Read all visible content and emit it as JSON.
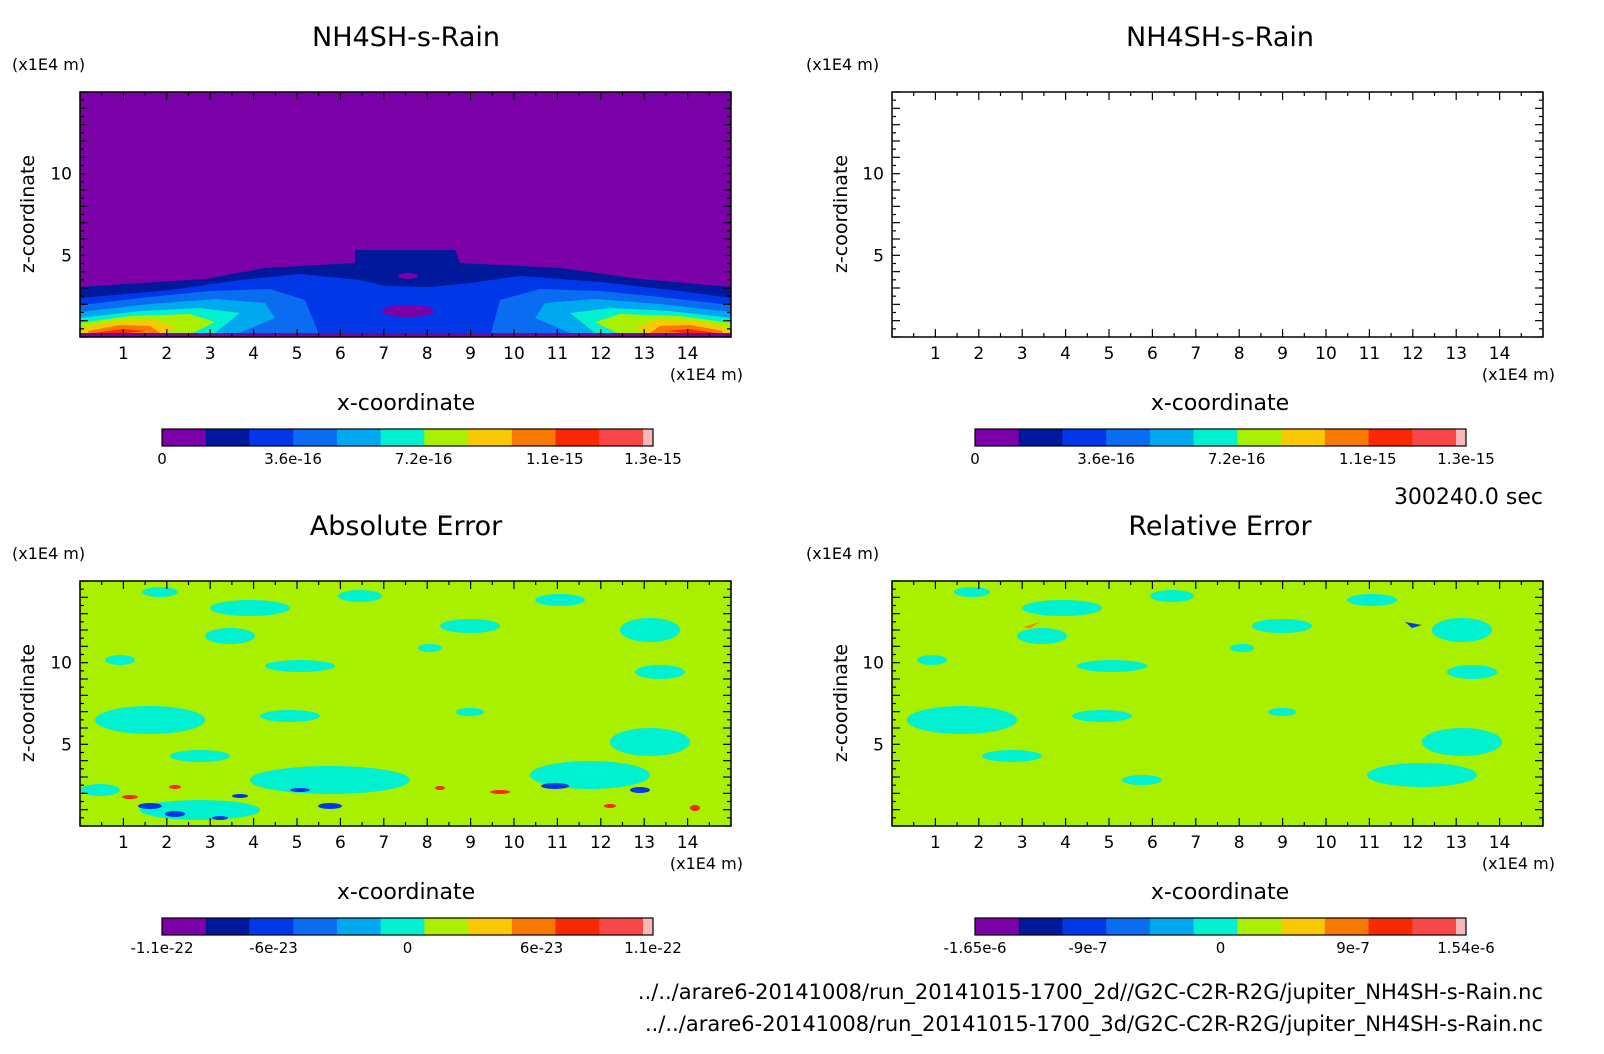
{
  "time_label": "300240.0 sec",
  "file_paths": [
    "../../arare6-20141008/run_20141015-1700_2d//G2C-C2R-R2G/jupiter_NH4SH-s-Rain.nc",
    "../../arare6-20141008/run_20141015-1700_3d/G2C-C2R-R2G/jupiter_NH4SH-s-Rain.nc"
  ],
  "colors": {
    "purple": "#7b00a8",
    "navy": "#00189c",
    "blue": "#0038e8",
    "mid_blue": "#0a6cf0",
    "sky": "#00a8f0",
    "cyan": "#00f0d0",
    "lime": "#a8f000",
    "yellow": "#f8c800",
    "orange": "#f87800",
    "red": "#f82800",
    "light_red": "#f84848",
    "pink": "#f8b8b8"
  },
  "chart_data": [
    {
      "type": "heatmap",
      "title": "NH4SH-s-Rain",
      "xlabel": "x-coordinate",
      "ylabel": "z-coordinate",
      "x_unit": "(x1E4 m)",
      "y_unit": "(x1E4 m)",
      "xlim": [
        0,
        15
      ],
      "ylim": [
        0,
        15
      ],
      "x_ticks": [
        "1",
        "2",
        "3",
        "4",
        "5",
        "6",
        "7",
        "8",
        "9",
        "10",
        "11",
        "12",
        "13",
        "14"
      ],
      "y_ticks": [
        "5",
        "10"
      ],
      "colorbar_labels": [
        "0",
        "3.6e-16",
        "7.2e-16",
        "1.1e-15",
        "1.3e-15"
      ],
      "colorbar_label_positions": [
        0,
        0.267,
        0.533,
        0.8,
        1.0
      ]
    },
    {
      "type": "heatmap",
      "title": "NH4SH-s-Rain",
      "xlabel": "x-coordinate",
      "ylabel": "z-coordinate",
      "x_unit": "(x1E4 m)",
      "y_unit": "(x1E4 m)",
      "xlim": [
        0,
        15
      ],
      "ylim": [
        0,
        15
      ],
      "x_ticks": [
        "1",
        "2",
        "3",
        "4",
        "5",
        "6",
        "7",
        "8",
        "9",
        "10",
        "11",
        "12",
        "13",
        "14"
      ],
      "y_ticks": [
        "5",
        "10"
      ],
      "colorbar_labels": [
        "0",
        "3.6e-16",
        "7.2e-16",
        "1.1e-15",
        "1.3e-15"
      ],
      "colorbar_label_positions": [
        0,
        0.267,
        0.533,
        0.8,
        1.0
      ]
    },
    {
      "type": "heatmap",
      "title": "Absolute Error",
      "xlabel": "x-coordinate",
      "ylabel": "z-coordinate",
      "x_unit": "(x1E4 m)",
      "y_unit": "(x1E4 m)",
      "xlim": [
        0,
        15
      ],
      "ylim": [
        0,
        15
      ],
      "x_ticks": [
        "1",
        "2",
        "3",
        "4",
        "5",
        "6",
        "7",
        "8",
        "9",
        "10",
        "11",
        "12",
        "13",
        "14"
      ],
      "y_ticks": [
        "5",
        "10"
      ],
      "colorbar_labels": [
        "-1.1e-22",
        "-6e-23",
        "0",
        "6e-23",
        "1.1e-22"
      ],
      "colorbar_label_positions": [
        0,
        0.227,
        0.5,
        0.773,
        1.0
      ]
    },
    {
      "type": "heatmap",
      "title": "Relative Error",
      "xlabel": "x-coordinate",
      "ylabel": "z-coordinate",
      "x_unit": "(x1E4 m)",
      "y_unit": "(x1E4 m)",
      "xlim": [
        0,
        15
      ],
      "ylim": [
        0,
        15
      ],
      "x_ticks": [
        "1",
        "2",
        "3",
        "4",
        "5",
        "6",
        "7",
        "8",
        "9",
        "10",
        "11",
        "12",
        "13",
        "14"
      ],
      "y_ticks": [
        "5",
        "10"
      ],
      "colorbar_labels": [
        "-1.65e-6",
        "-9e-7",
        "0",
        "9e-7",
        "1.54e-6"
      ],
      "colorbar_label_positions": [
        0,
        0.23,
        0.5,
        0.77,
        1.0
      ]
    }
  ]
}
